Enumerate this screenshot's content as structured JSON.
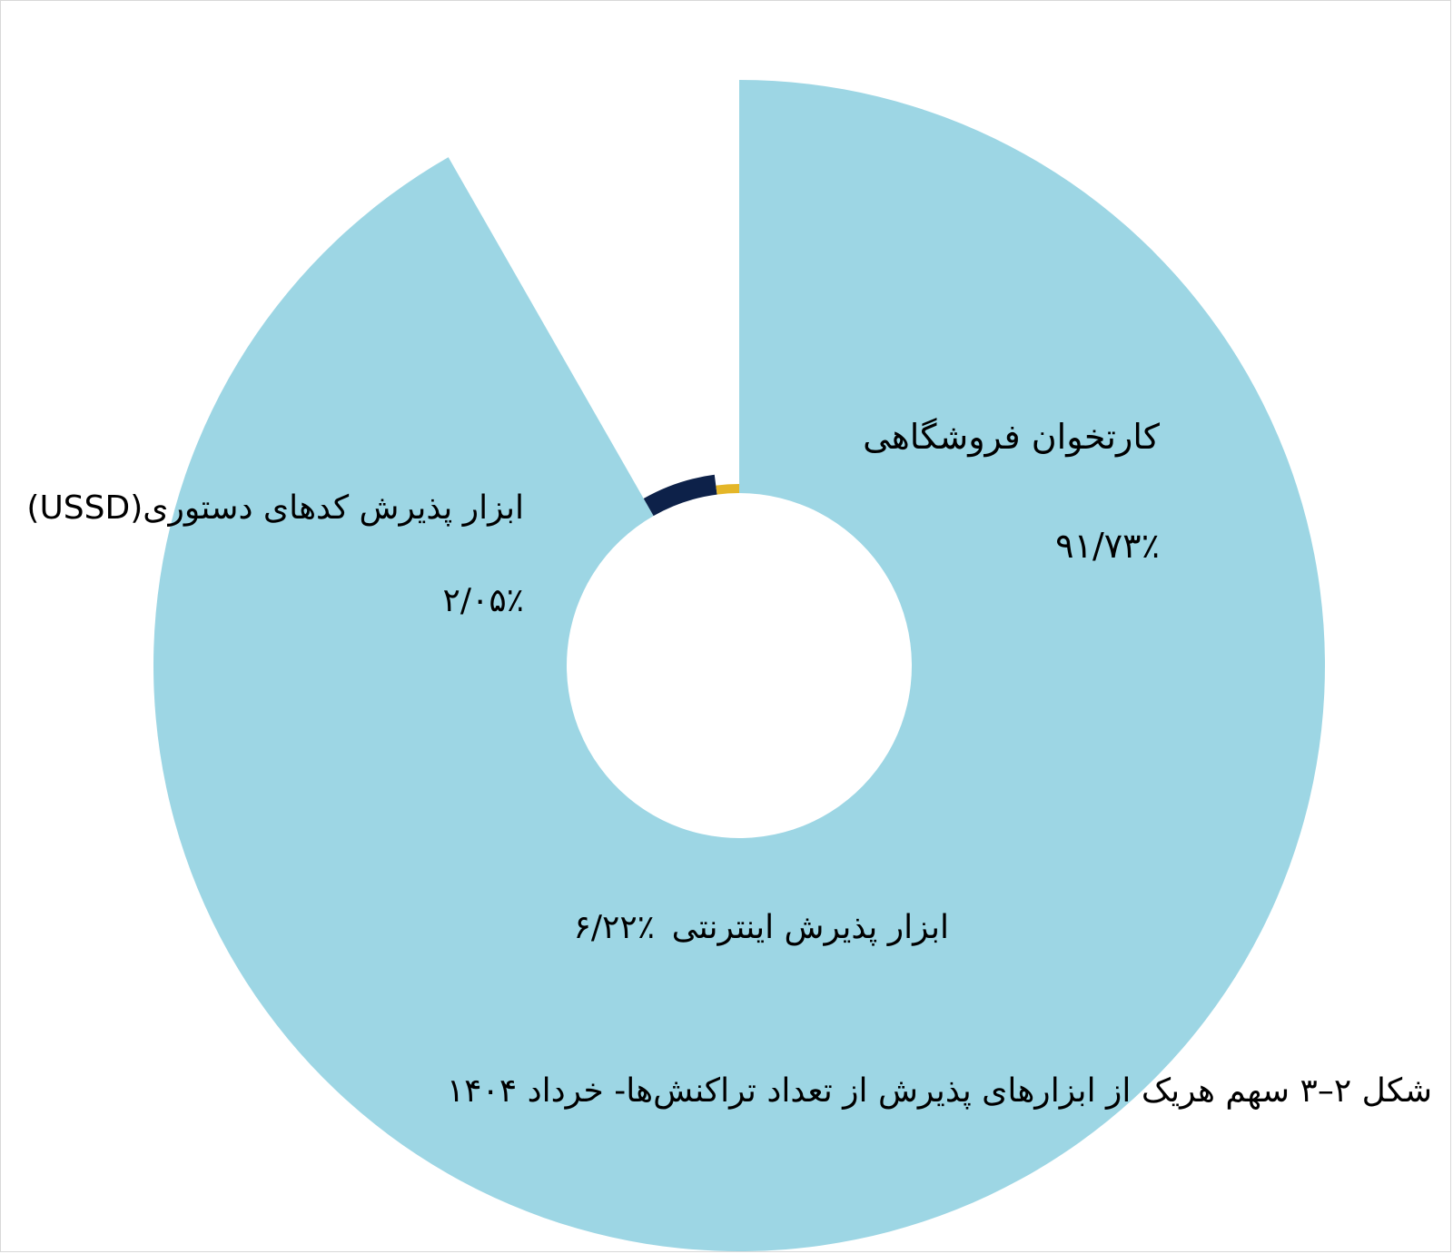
{
  "chart_data": {
    "type": "pie",
    "title": "",
    "slices": [
      {
        "label": "کارتخوان فروشگاهی",
        "value": 91.73,
        "value_label": "۹۱/۷۳٪",
        "color": "#9dd6e4"
      },
      {
        "label": "ابزار پذیرش اینترنتی",
        "value": 6.22,
        "value_label": "۶/۲۲٪",
        "color": "#0d2149"
      },
      {
        "label": "ابزار پذیرش کدهای دستوری(USSD)",
        "value": 2.05,
        "value_label": "۲/۰۵٪",
        "color": "#e4b628"
      }
    ],
    "style": "variable-radius donut (pie-of-radius)"
  },
  "caption": "شکل ۲–۳ سهم هریک از ابزارهای پذیرش از تعداد تراکنش‌ها- خرداد ۱۴۰۴"
}
